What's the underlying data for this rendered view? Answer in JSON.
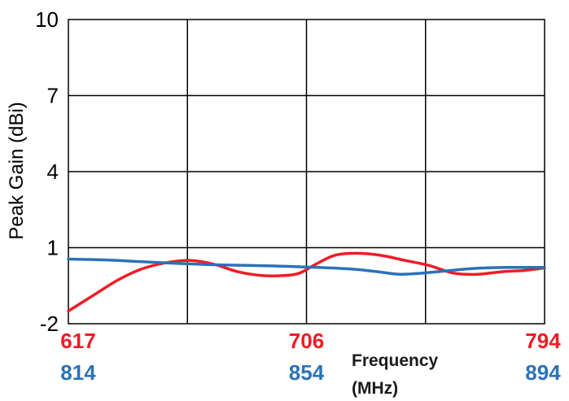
{
  "chart_data": {
    "type": "line",
    "ylabel": "Peak Gain (dBi)",
    "xlabel": "Frequency",
    "xlabel_unit": "(MHz)",
    "ylim": [
      -2,
      10
    ],
    "yticks": [
      "10",
      "7",
      "4",
      "1",
      "-2"
    ],
    "grid": true,
    "x_axes": [
      {
        "color": "#ee1c25",
        "ticks": [
          "617",
          "706",
          "794"
        ],
        "range": [
          617,
          794
        ]
      },
      {
        "color": "#2b72b9",
        "ticks": [
          "814",
          "854",
          "894"
        ],
        "range": [
          814,
          894
        ]
      }
    ],
    "series": [
      {
        "axis": 0,
        "color": "#ee1c25",
        "x": [
          617,
          626,
          635,
          644,
          653,
          662,
          671,
          680,
          689,
          697,
          703,
          709,
          716,
          724,
          733,
          742,
          751,
          760,
          769,
          778,
          786,
          794
        ],
        "y": [
          -1.5,
          -0.9,
          -0.3,
          0.15,
          0.4,
          0.5,
          0.35,
          0.05,
          -0.1,
          -0.1,
          0.0,
          0.35,
          0.7,
          0.78,
          0.7,
          0.5,
          0.3,
          0.0,
          -0.05,
          0.05,
          0.1,
          0.2
        ]
      },
      {
        "axis": 1,
        "color": "#2b72b9",
        "x": [
          814,
          820,
          826,
          832,
          838,
          844,
          850,
          856,
          862,
          866,
          870,
          876,
          882,
          888,
          894
        ],
        "y": [
          0.55,
          0.52,
          0.45,
          0.38,
          0.33,
          0.3,
          0.27,
          0.22,
          0.15,
          0.05,
          -0.05,
          0.05,
          0.18,
          0.22,
          0.22
        ]
      }
    ]
  }
}
